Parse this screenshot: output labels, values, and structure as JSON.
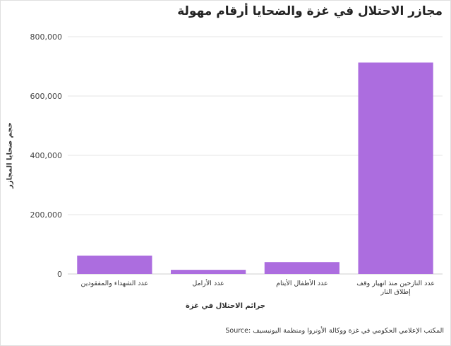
{
  "chart_data": {
    "type": "bar",
    "title": "مجازر الاحتلال في غزة والضحايا أرقام مهولة",
    "xlabel": "جرائم الاحتلال في غزة",
    "ylabel": "حجم ضحايا المجازر",
    "categories": [
      "عدد الشهداء والمفقودين",
      "عدد الأرامل",
      "عدد الأطفال الأيتام",
      "عدد النازحين منذ انهيار وقف إطلاق النار"
    ],
    "category_lines": [
      [
        "عدد الشهداء والمفقودين"
      ],
      [
        "عدد الأرامل"
      ],
      [
        "عدد الأطفال الأيتام"
      ],
      [
        "عدد النازحين منذ انهيار وقف",
        "إطلاق النار"
      ]
    ],
    "values": [
      62000,
      14000,
      40000,
      713000
    ],
    "ylim": [
      0,
      800000
    ],
    "yticks": [
      0,
      200000,
      400000,
      600000,
      800000
    ],
    "ytick_labels": [
      "0",
      "200,000",
      "400,000",
      "600,000",
      "800,000"
    ],
    "grid": true,
    "bar_color": "#ac6ddf",
    "source": "المكتب الإعلامي الحكومي في غزة ووكالة الأونروا ومنظمة اليونيسيف :Source"
  }
}
